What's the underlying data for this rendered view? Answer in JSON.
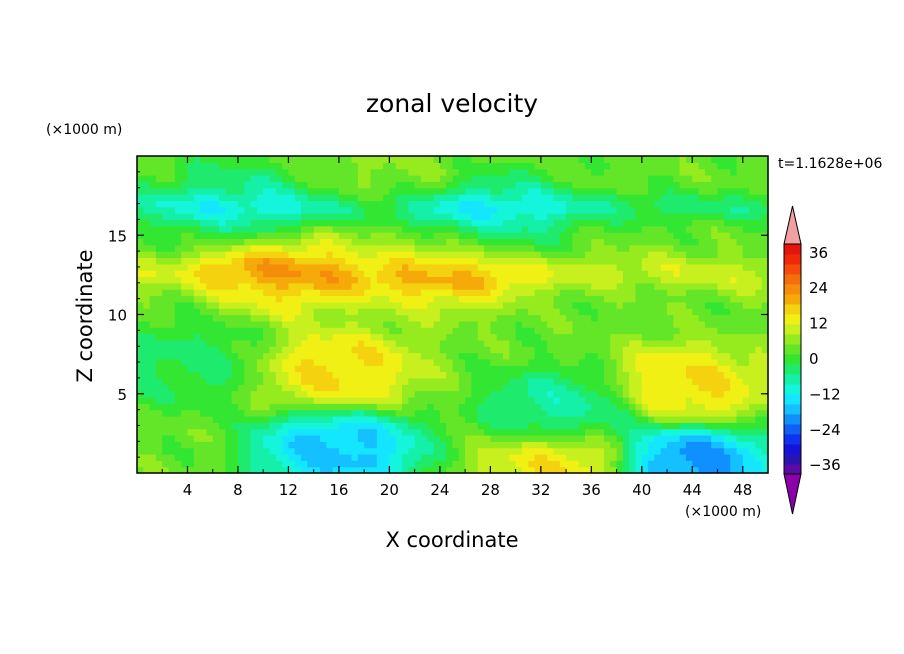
{
  "chart_data": {
    "type": "heatmap",
    "title": "zonal velocity",
    "xlabel": "X coordinate",
    "ylabel": "Z coordinate",
    "x_unit": "(×1000 m)",
    "y_unit": "(×1000 m)",
    "time_label": "t=1.1628e+06",
    "xlim": [
      0,
      50
    ],
    "ylim": [
      0,
      20
    ],
    "x_ticks": [
      "4",
      "8",
      "12",
      "16",
      "20",
      "24",
      "28",
      "32",
      "36",
      "40",
      "44",
      "48"
    ],
    "y_ticks": [
      "5",
      "10",
      "15"
    ],
    "colorbar": {
      "levels": [
        -42,
        -39,
        -36,
        -33,
        -30,
        -27,
        -24,
        -21,
        -18,
        -15,
        -12,
        -9,
        -6,
        -3,
        0,
        3,
        6,
        9,
        12,
        15,
        18,
        21,
        24,
        27,
        30,
        33,
        36,
        39,
        42
      ],
      "tick_labels": [
        "36",
        "24",
        "12",
        "0",
        "-12",
        "-24",
        "-36"
      ],
      "colors": [
        "#8b00a8",
        "#5a0aa8",
        "#2a14b0",
        "#1414d8",
        "#0f32f0",
        "#1060f5",
        "#1090ff",
        "#14c0ff",
        "#14e6ff",
        "#14f5dc",
        "#14f0a8",
        "#1eeb6e",
        "#32e632",
        "#64e628",
        "#96eb1e",
        "#c8f01e",
        "#f0f014",
        "#f5d20f",
        "#f5aa0a",
        "#f58c0a",
        "#f56e0a",
        "#f54b0a",
        "#f0280a",
        "#e6140a",
        "#f0a0a0"
      ],
      "under_color": "#8b00a8",
      "over_color": "#f0a0a0"
    },
    "field_description_points": [
      {
        "x": 16,
        "z": 6.5,
        "u": 12
      },
      {
        "x": 16,
        "z": 1.5,
        "u": -20
      },
      {
        "x": 43.5,
        "z": 0.6,
        "u": -24
      },
      {
        "x": 43.5,
        "z": 5.5,
        "u": 12
      },
      {
        "x": 34,
        "z": 4,
        "u": -10
      },
      {
        "x": 34,
        "z": 0.5,
        "u": 12
      },
      {
        "x": 12,
        "z": 12.5,
        "u": 12
      },
      {
        "x": 24,
        "z": 12.5,
        "u": 9
      },
      {
        "x": 8,
        "z": 17,
        "u": -8
      },
      {
        "x": 28,
        "z": 16.5,
        "u": -9
      },
      {
        "x": 20,
        "z": 19,
        "u": 2
      },
      {
        "x": 4,
        "z": 7,
        "u": -6
      }
    ]
  }
}
